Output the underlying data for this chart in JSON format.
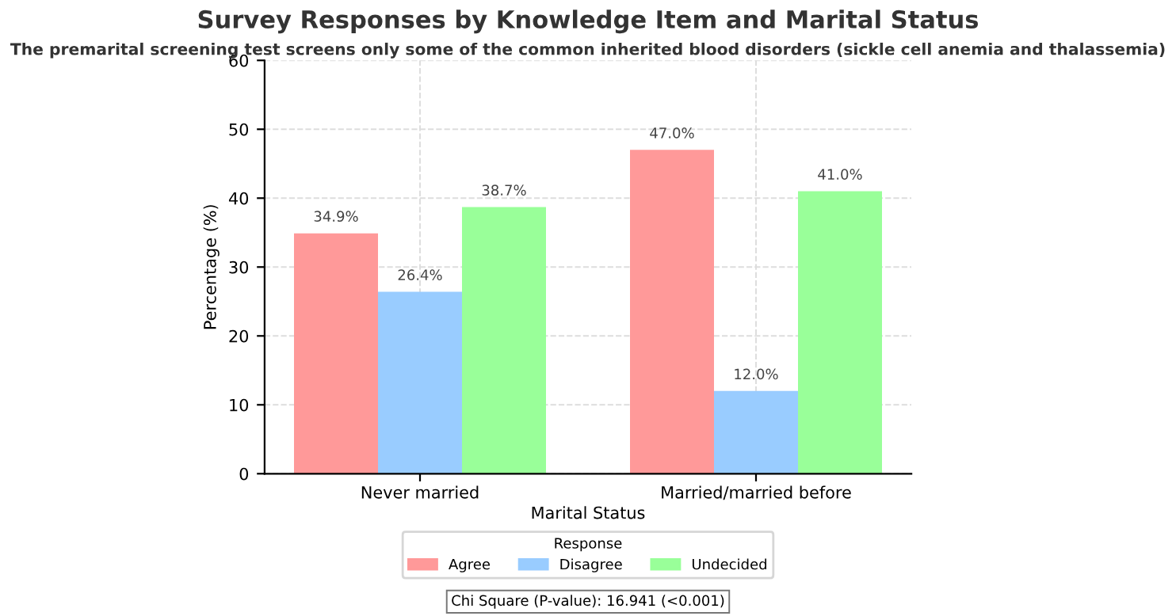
{
  "chart_data": {
    "type": "bar",
    "title": "Survey Responses by Knowledge Item and Marital Status",
    "subtitle": "The premarital screening test screens only some of the common inherited blood disorders (sickle cell anemia and thalassemia)",
    "xlabel": "Marital Status",
    "ylabel": "Percentage (%)",
    "legend_title": "Response",
    "categories": [
      "Never married",
      "Married/married before"
    ],
    "series": [
      {
        "name": "Agree",
        "color": "#ff9999",
        "values": [
          34.9,
          47.0
        ],
        "value_labels": [
          "34.9%",
          "47.0%"
        ]
      },
      {
        "name": "Disagree",
        "color": "#99ccff",
        "values": [
          26.4,
          12.0
        ],
        "value_labels": [
          "26.4%",
          "12.0%"
        ]
      },
      {
        "name": "Undecided",
        "color": "#99ff99",
        "values": [
          38.7,
          41.0
        ],
        "value_labels": [
          "38.7%",
          "41.0%"
        ]
      }
    ],
    "ylim": [
      0,
      60
    ],
    "yticks": [
      0,
      10,
      20,
      30,
      40,
      50,
      60
    ],
    "grid": true,
    "legend": "bottom",
    "annotations": [
      "Chi Square (P-value): 16.941 (<0.001)"
    ]
  }
}
